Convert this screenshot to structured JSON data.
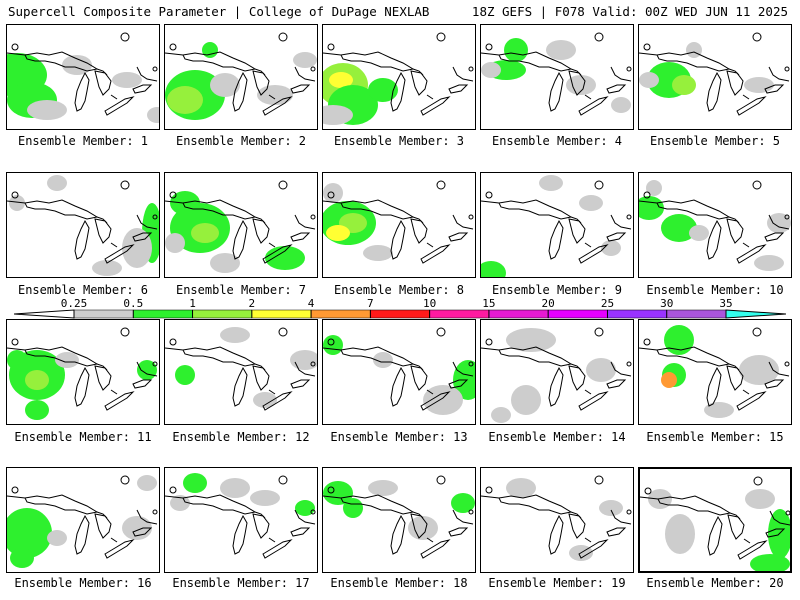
{
  "header": {
    "left": "Supercell Composite Parameter | College of DuPage NEXLAB",
    "right": "18Z GEFS | F078 Valid: 00Z WED JUN 11 2025"
  },
  "colorbar": {
    "labels": [
      "0.25",
      "0.5",
      "1",
      "2",
      "4",
      "7",
      "10",
      "15",
      "20",
      "25",
      "30",
      "35"
    ],
    "colors": [
      "#cdcdcd",
      "#2ef02e",
      "#96f03c",
      "#ffff33",
      "#ff9933",
      "#ff1a1a",
      "#ff1aa0",
      "#e61ad2",
      "#e600ff",
      "#9933ff",
      "#aa55dd",
      "#33ffee"
    ]
  },
  "panels": [
    {
      "label": "Ensemble Member: 1",
      "blobs": [
        [
          10,
          50,
          30,
          22,
          2
        ],
        [
          25,
          75,
          25,
          18,
          2
        ],
        [
          40,
          85,
          20,
          10,
          1
        ],
        [
          70,
          40,
          15,
          10,
          1
        ],
        [
          120,
          55,
          15,
          8,
          1
        ],
        [
          150,
          90,
          10,
          8,
          1
        ]
      ]
    },
    {
      "label": "Ensemble Member: 2",
      "blobs": [
        [
          30,
          70,
          30,
          25,
          2
        ],
        [
          20,
          75,
          18,
          14,
          3
        ],
        [
          45,
          25,
          8,
          8,
          2
        ],
        [
          60,
          60,
          15,
          12,
          1
        ],
        [
          110,
          70,
          18,
          10,
          1
        ],
        [
          140,
          35,
          12,
          8,
          1
        ]
      ]
    },
    {
      "label": "Ensemble Member: 3",
      "blobs": [
        [
          20,
          60,
          25,
          22,
          3
        ],
        [
          18,
          55,
          12,
          8,
          4
        ],
        [
          30,
          80,
          25,
          20,
          2
        ],
        [
          60,
          65,
          15,
          12,
          2
        ],
        [
          10,
          90,
          20,
          10,
          1
        ]
      ]
    },
    {
      "label": "Ensemble Member: 4",
      "blobs": [
        [
          35,
          25,
          12,
          12,
          2
        ],
        [
          25,
          45,
          20,
          10,
          2
        ],
        [
          10,
          45,
          10,
          8,
          1
        ],
        [
          80,
          25,
          15,
          10,
          1
        ],
        [
          100,
          60,
          15,
          10,
          1
        ],
        [
          140,
          80,
          10,
          8,
          1
        ]
      ]
    },
    {
      "label": "Ensemble Member: 5",
      "blobs": [
        [
          30,
          55,
          22,
          18,
          2
        ],
        [
          45,
          60,
          12,
          10,
          3
        ],
        [
          10,
          55,
          10,
          8,
          1
        ],
        [
          55,
          25,
          8,
          8,
          1
        ],
        [
          120,
          60,
          15,
          8,
          1
        ]
      ]
    },
    {
      "label": "Ensemble Member: 6",
      "blobs": [
        [
          145,
          60,
          10,
          30,
          2
        ],
        [
          130,
          75,
          15,
          20,
          1
        ],
        [
          50,
          10,
          10,
          8,
          1
        ],
        [
          10,
          30,
          8,
          8,
          1
        ],
        [
          100,
          95,
          15,
          8,
          1
        ]
      ]
    },
    {
      "label": "Ensemble Member: 7",
      "blobs": [
        [
          35,
          55,
          30,
          25,
          2
        ],
        [
          40,
          60,
          14,
          10,
          3
        ],
        [
          20,
          30,
          15,
          12,
          2
        ],
        [
          120,
          85,
          20,
          12,
          2
        ],
        [
          60,
          90,
          15,
          10,
          1
        ],
        [
          10,
          70,
          10,
          10,
          1
        ]
      ]
    },
    {
      "label": "Ensemble Member: 8",
      "blobs": [
        [
          25,
          50,
          28,
          22,
          2
        ],
        [
          30,
          50,
          14,
          10,
          3
        ],
        [
          15,
          60,
          12,
          8,
          4
        ],
        [
          10,
          20,
          10,
          10,
          1
        ],
        [
          55,
          80,
          15,
          8,
          1
        ]
      ]
    },
    {
      "label": "Ensemble Member: 9",
      "blobs": [
        [
          10,
          100,
          15,
          12,
          2
        ],
        [
          70,
          10,
          12,
          8,
          1
        ],
        [
          110,
          30,
          12,
          8,
          1
        ],
        [
          130,
          75,
          10,
          8,
          1
        ]
      ]
    },
    {
      "label": "Ensemble Member: 10",
      "blobs": [
        [
          10,
          35,
          15,
          12,
          2
        ],
        [
          40,
          55,
          18,
          14,
          2
        ],
        [
          60,
          60,
          10,
          8,
          1
        ],
        [
          140,
          50,
          12,
          10,
          1
        ],
        [
          15,
          15,
          8,
          8,
          1
        ],
        [
          130,
          90,
          15,
          8,
          1
        ]
      ]
    },
    {
      "label": "Ensemble Member: 11",
      "blobs": [
        [
          30,
          55,
          28,
          25,
          2
        ],
        [
          30,
          60,
          12,
          10,
          3
        ],
        [
          10,
          40,
          10,
          10,
          2
        ],
        [
          30,
          90,
          12,
          10,
          2
        ],
        [
          60,
          40,
          12,
          8,
          1
        ],
        [
          140,
          50,
          10,
          10,
          2
        ]
      ]
    },
    {
      "label": "Ensemble Member: 12",
      "blobs": [
        [
          20,
          55,
          10,
          10,
          2
        ],
        [
          140,
          40,
          15,
          10,
          1
        ],
        [
          70,
          15,
          15,
          8,
          1
        ],
        [
          100,
          80,
          12,
          8,
          1
        ]
      ]
    },
    {
      "label": "Ensemble Member: 13",
      "blobs": [
        [
          10,
          25,
          10,
          10,
          2
        ],
        [
          145,
          60,
          15,
          20,
          2
        ],
        [
          120,
          80,
          20,
          15,
          1
        ],
        [
          60,
          40,
          10,
          8,
          1
        ]
      ]
    },
    {
      "label": "Ensemble Member: 14",
      "blobs": [
        [
          50,
          20,
          25,
          12,
          1
        ],
        [
          45,
          80,
          15,
          15,
          1
        ],
        [
          120,
          50,
          15,
          12,
          1
        ],
        [
          20,
          95,
          10,
          8,
          1
        ]
      ]
    },
    {
      "label": "Ensemble Member: 15",
      "blobs": [
        [
          40,
          20,
          15,
          15,
          2
        ],
        [
          35,
          55,
          12,
          12,
          2
        ],
        [
          30,
          60,
          8,
          8,
          5
        ],
        [
          120,
          50,
          20,
          15,
          1
        ],
        [
          80,
          90,
          15,
          8,
          1
        ]
      ]
    },
    {
      "label": "Ensemble Member: 16",
      "blobs": [
        [
          20,
          65,
          25,
          25,
          2
        ],
        [
          15,
          90,
          12,
          10,
          2
        ],
        [
          50,
          70,
          10,
          8,
          1
        ],
        [
          130,
          60,
          15,
          12,
          1
        ],
        [
          140,
          15,
          10,
          8,
          1
        ]
      ]
    },
    {
      "label": "Ensemble Member: 17",
      "blobs": [
        [
          30,
          15,
          12,
          10,
          2
        ],
        [
          15,
          35,
          10,
          8,
          1
        ],
        [
          70,
          20,
          15,
          10,
          1
        ],
        [
          100,
          30,
          15,
          8,
          1
        ],
        [
          140,
          40,
          10,
          8,
          2
        ]
      ]
    },
    {
      "label": "Ensemble Member: 18",
      "blobs": [
        [
          15,
          25,
          15,
          12,
          2
        ],
        [
          30,
          40,
          10,
          10,
          2
        ],
        [
          100,
          60,
          15,
          12,
          1
        ],
        [
          140,
          35,
          12,
          10,
          2
        ],
        [
          60,
          20,
          15,
          8,
          1
        ]
      ]
    },
    {
      "label": "Ensemble Member: 19",
      "blobs": [
        [
          40,
          20,
          15,
          10,
          1
        ],
        [
          130,
          40,
          12,
          8,
          1
        ],
        [
          100,
          85,
          12,
          8,
          1
        ]
      ]
    },
    {
      "label": "Ensemble Member: 20",
      "blobs": [
        [
          140,
          65,
          12,
          25,
          2
        ],
        [
          130,
          95,
          20,
          10,
          2
        ],
        [
          40,
          65,
          15,
          20,
          1
        ],
        [
          20,
          30,
          12,
          10,
          1
        ],
        [
          120,
          30,
          15,
          10,
          1
        ]
      ],
      "selected": true
    }
  ]
}
